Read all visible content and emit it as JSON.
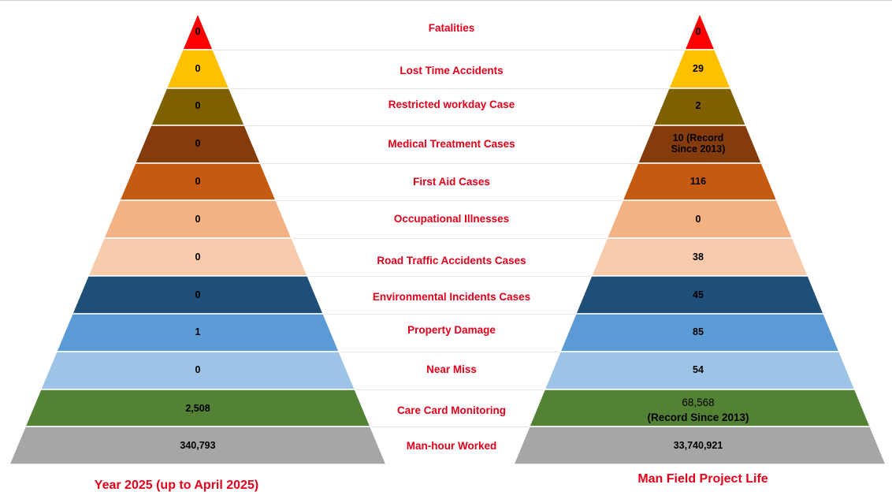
{
  "rows": [
    {
      "label": "Fatalities",
      "color": "#ff0000",
      "left_value": "0",
      "right_value": "0"
    },
    {
      "label": "Lost Time Accidents",
      "color": "#ffc000",
      "left_value": "0",
      "right_value": "29"
    },
    {
      "label": "Restricted workday Case",
      "color": "#7f6000",
      "left_value": "0",
      "right_value": "2"
    },
    {
      "label": "Medical Treatment Cases",
      "color": "#843c0c",
      "left_value": "0",
      "right_value": "10 (Record Since 2013)"
    },
    {
      "label": "First Aid Cases",
      "color": "#c55a11",
      "left_value": "0",
      "right_value": "116"
    },
    {
      "label": "Occupational Illnesses",
      "color": "#f4b183",
      "left_value": "0",
      "right_value": "0"
    },
    {
      "label": "Road Traffic Accidents Cases",
      "color": "#f8cbad",
      "left_value": "0",
      "right_value": "38"
    },
    {
      "label": "Environmental Incidents Cases",
      "color": "#1f4e79",
      "left_value": "0",
      "right_value": "45"
    },
    {
      "label": "Property Damage",
      "color": "#5b9bd5",
      "left_value": "1",
      "right_value": "85"
    },
    {
      "label": "Near Miss",
      "color": "#9dc3e6",
      "left_value": "0",
      "right_value": "54"
    },
    {
      "label": "Care Card Monitoring",
      "color": "#548235",
      "left_value": "2,508",
      "right_value": "68,568",
      "right_value_note": "(Record Since 2013)"
    },
    {
      "label": "Man-hour Worked",
      "color": "#a6a6a6",
      "left_value": "340,793",
      "right_value": "33,740,921"
    }
  ],
  "captions": {
    "left": "Year 2025 (up to April 2025)",
    "right": "Man Field Project Life"
  }
}
